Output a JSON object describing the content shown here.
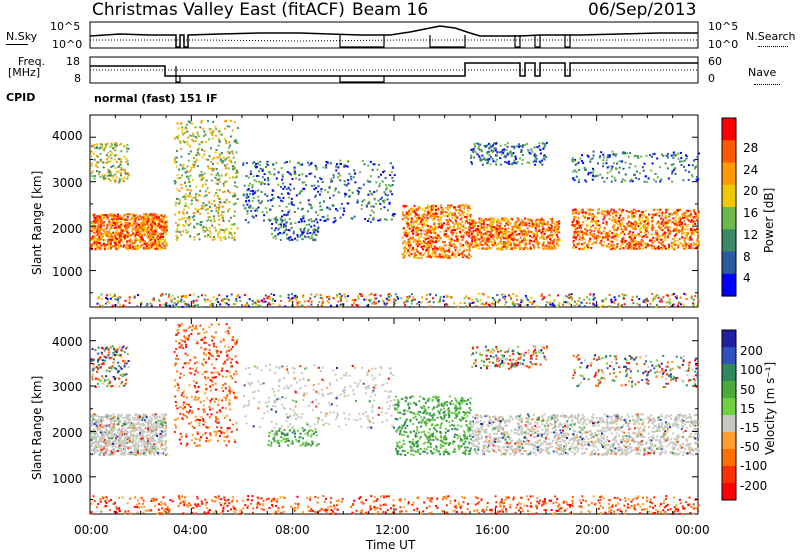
{
  "header": {
    "station": "Christmas Valley East (fitACF)",
    "beam": "Beam 16",
    "date": "06/Sep/2013"
  },
  "panels": {
    "noise": {
      "left_label": "N.Sky",
      "left_ticks": [
        "10^5",
        "10^0"
      ],
      "right_label": "N.Search",
      "right_ticks": [
        "10^5",
        "10^0"
      ]
    },
    "freq": {
      "left_label_1": "Freq.",
      "left_label_2": "[MHz]",
      "left_ticks": [
        "18",
        "8"
      ],
      "right_label": "Nave",
      "right_ticks": [
        "60",
        "0"
      ]
    },
    "cpid": {
      "label": "CPID",
      "text": "normal (fast) 151 IF"
    }
  },
  "axes": {
    "y_label": "Slant Range [km]",
    "y_ticks": [
      "4000",
      "3000",
      "2000",
      "1000"
    ],
    "x_label": "Time UT",
    "x_ticks": [
      "00:00",
      "04:00",
      "08:00",
      "12:00",
      "16:00",
      "20:00",
      "00:00"
    ]
  },
  "colorbars": {
    "power": {
      "label": "Power [dB]",
      "ticks": [
        "28",
        "24",
        "20",
        "16",
        "12",
        "8",
        "4"
      ],
      "colors": [
        "#ff0000",
        "#ff5a00",
        "#ff9a00",
        "#f0c800",
        "#6cb84a",
        "#3a8a6a",
        "#2a5aa0",
        "#0000ff"
      ]
    },
    "velocity": {
      "label": "Velocity [m s⁻¹]",
      "ticks": [
        "200",
        "100",
        "50",
        "15",
        "-15",
        "-50",
        "-100",
        "-200"
      ],
      "colors": [
        "#2020a0",
        "#3050c0",
        "#2e8a5a",
        "#4caa3a",
        "#70d040",
        "#c8c8c0",
        "#ffa030",
        "#ff7000",
        "#ff3000",
        "#ff0000"
      ]
    }
  },
  "chart_data": [
    {
      "type": "heatmap",
      "name": "Power",
      "xlabel": "Time UT",
      "ylabel": "Slant Range [km]",
      "xlim": [
        0,
        24
      ],
      "ylim": [
        180,
        4500
      ],
      "colorbar": "Power [dB]",
      "regions": [
        {
          "t": [
            0,
            3
          ],
          "r": [
            1500,
            2400
          ],
          "level": "high"
        },
        {
          "t": [
            3.5,
            5.5
          ],
          "r": [
            1600,
            4400
          ],
          "level": "medium"
        },
        {
          "t": [
            6,
            12.5
          ],
          "r": [
            2000,
            3800
          ],
          "level": "low"
        },
        {
          "t": [
            12.5,
            15
          ],
          "r": [
            1300,
            2400
          ],
          "level": "high"
        },
        {
          "t": [
            15,
            18.5
          ],
          "r": [
            1500,
            2200
          ],
          "level": "high"
        },
        {
          "t": [
            19,
            24
          ],
          "r": [
            1500,
            2400
          ],
          "level": "high"
        }
      ]
    },
    {
      "type": "heatmap",
      "name": "Velocity",
      "xlabel": "Time UT",
      "ylabel": "Slant Range [km]",
      "xlim": [
        0,
        24
      ],
      "ylim": [
        180,
        4500
      ],
      "colorbar": "Velocity [m s⁻¹]",
      "regions": [
        {
          "t": [
            0,
            3
          ],
          "r": [
            1500,
            2400
          ],
          "level": "near zero"
        },
        {
          "t": [
            15,
            24
          ],
          "r": [
            1500,
            2400
          ],
          "level": "near zero"
        },
        {
          "t": [
            12,
            15
          ],
          "r": [
            1500,
            2800
          ],
          "level": "positive"
        },
        {
          "t": [
            0,
            24
          ],
          "r": [
            180,
            600
          ],
          "level": "negative"
        }
      ]
    }
  ]
}
